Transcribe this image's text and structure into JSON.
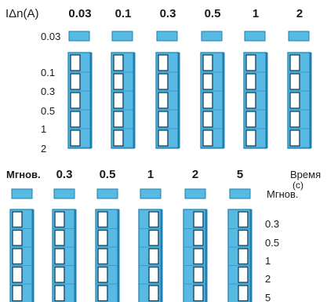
{
  "colors": {
    "switch_fill": "#58b9e3",
    "switch_edge": "#1e7fb0",
    "knob_fill": "#ffffff",
    "knob_edge": "#1c4b66",
    "text": "#1a1a1a"
  },
  "sensitivity": {
    "axis_label": "IΔn(A)",
    "columns": [
      "0.03",
      "0.1",
      "0.3",
      "0.5",
      "1",
      "2"
    ],
    "rows": [
      "0.03",
      "0.1",
      "0.3",
      "0.5",
      "1",
      "2"
    ],
    "switch_positions": [
      "left",
      "left",
      "left",
      "left",
      "left",
      "left"
    ]
  },
  "time_delay": {
    "axis_label_line1": "Время",
    "axis_label_line2": "(с)",
    "columns": [
      "Мгнов.",
      "0.3",
      "0.5",
      "1",
      "2",
      "5"
    ],
    "rows": [
      "Мгнов.",
      "0.3",
      "0.5",
      "1",
      "2",
      "5"
    ],
    "switch_positions": [
      "left",
      "left",
      "left",
      "right",
      "right",
      "right"
    ]
  }
}
